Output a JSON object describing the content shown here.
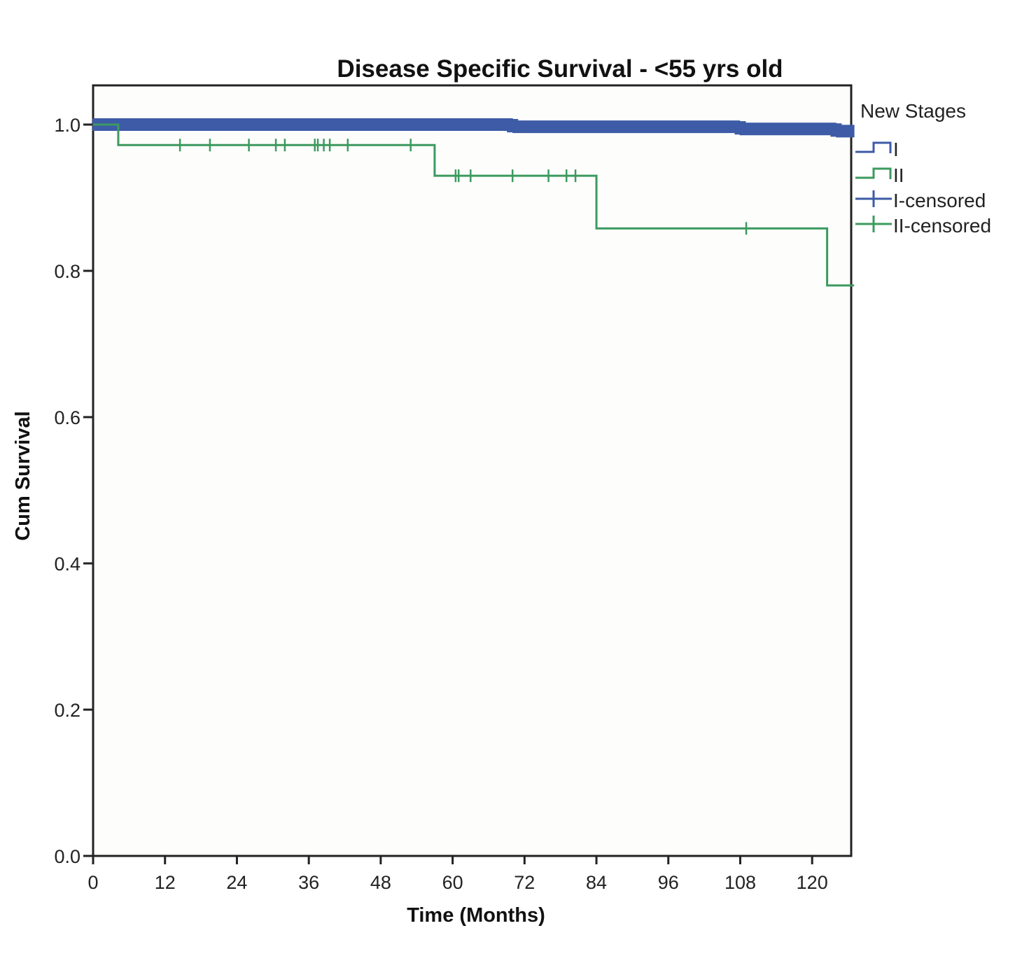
{
  "chart_data": {
    "type": "line",
    "title": "Disease Specific Survival - <55 yrs old",
    "xlabel": "Time (Months)",
    "ylabel": "Cum Survival",
    "xlim": [
      0,
      127
    ],
    "ylim": [
      0,
      1.05
    ],
    "x_ticks": [
      "0",
      "12",
      "24",
      "36",
      "48",
      "60",
      "72",
      "84",
      "96",
      "108",
      "120"
    ],
    "x_tick_values": [
      0,
      12,
      24,
      36,
      48,
      60,
      72,
      84,
      96,
      108,
      120
    ],
    "y_ticks": [
      "0.0",
      "0.2",
      "0.4",
      "0.6",
      "0.8",
      "1.0"
    ],
    "y_tick_values": [
      0.0,
      0.2,
      0.4,
      0.6,
      0.8,
      1.0
    ],
    "legend_title": "New Stages",
    "legend": [
      "I",
      "II",
      "I-censored",
      "II-censored"
    ],
    "legend_position": "right",
    "series": [
      {
        "name": "I",
        "color": "#3d5ba6",
        "steps": [
          [
            0,
            1.0
          ],
          [
            70,
            0.997
          ],
          [
            108,
            0.994
          ],
          [
            124,
            0.991
          ],
          [
            127,
            0.991
          ]
        ],
        "censored_dense_range": [
          0,
          127
        ]
      },
      {
        "name": "II",
        "color": "#3c9a5f",
        "steps": [
          [
            0,
            1.0
          ],
          [
            4.2,
            0.972
          ],
          [
            57,
            0.93
          ],
          [
            84,
            0.858
          ],
          [
            122.5,
            0.78
          ],
          [
            127,
            0.78
          ]
        ],
        "censored": [
          14.5,
          19.5,
          26,
          30.5,
          32,
          37,
          37.5,
          38.5,
          39.5,
          42.5,
          53,
          60.5,
          61,
          63,
          70,
          76,
          79,
          80.5,
          109
        ]
      }
    ]
  }
}
